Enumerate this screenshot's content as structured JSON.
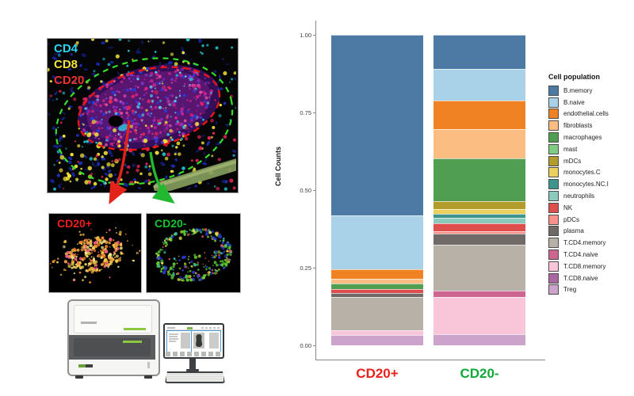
{
  "figure": {
    "microscopy": {
      "labels": [
        {
          "text": "CD4",
          "color": "#2ad5f2"
        },
        {
          "text": "CD8",
          "color": "#f2e23a"
        },
        {
          "text": "CD20",
          "color": "#f03030"
        }
      ],
      "annotation_colors": {
        "outer_dashed_ellipse": "#35e02c",
        "inner_dashed_ellipse": "#e81616",
        "red_arrow": "#e32219",
        "green_arrow": "#22b830"
      }
    },
    "subimages": [
      {
        "label": "CD20+",
        "label_color": "#f01d1d",
        "dot_theme": "orange"
      },
      {
        "label": "CD20-",
        "label_color": "#17c42d",
        "dot_theme": "green"
      }
    ]
  },
  "chart_data": {
    "type": "bar",
    "stacked": true,
    "normalized": true,
    "ylabel": "Cell Counts",
    "xlabel": "",
    "ylim": [
      0,
      1
    ],
    "yticks": [
      {
        "label": "1.00",
        "value": 1.0
      },
      {
        "label": "0.75",
        "value": 0.75
      },
      {
        "label": "0.50",
        "value": 0.5
      },
      {
        "label": "0.25",
        "value": 0.25
      },
      {
        "label": "0.00",
        "value": 0.0
      }
    ],
    "legend_title": "Cell population",
    "legend_position": "right",
    "grid": false,
    "categories": [
      {
        "label": "CD20+",
        "color": "#e8211c"
      },
      {
        "label": "CD20-",
        "color": "#10a838"
      }
    ],
    "series": [
      {
        "name": "B.memory",
        "color": "#4d79a5",
        "values": [
          0.582,
          0.11
        ]
      },
      {
        "name": "B.naive",
        "color": "#a9d1e8",
        "values": [
          0.173,
          0.101
        ]
      },
      {
        "name": "endothelial.cells",
        "color": "#f08223",
        "values": [
          0.03,
          0.092
        ]
      },
      {
        "name": "fibroblasts",
        "color": "#fbbd82",
        "values": [
          0.017,
          0.095
        ]
      },
      {
        "name": "macrophages",
        "color": "#4f9e51",
        "values": [
          0.017,
          0.138
        ]
      },
      {
        "name": "mast",
        "color": "#80cc85",
        "values": [
          0.0,
          0.0
        ]
      },
      {
        "name": "mDCs",
        "color": "#b29c2b",
        "values": [
          0.0,
          0.026
        ]
      },
      {
        "name": "monocytes.C",
        "color": "#ecd05e",
        "values": [
          0.0,
          0.015
        ]
      },
      {
        "name": "monocytes.NC.I",
        "color": "#3f958d",
        "values": [
          0.0,
          0.013
        ]
      },
      {
        "name": "neutrophils",
        "color": "#8ccabd",
        "values": [
          0.0,
          0.018
        ]
      },
      {
        "name": "NK",
        "color": "#dd4e4c",
        "values": [
          0.012,
          0.025
        ]
      },
      {
        "name": "pDCs",
        "color": "#f9908a",
        "values": [
          0.0,
          0.008
        ]
      },
      {
        "name": "plasma",
        "color": "#6f6a67",
        "values": [
          0.014,
          0.036
        ]
      },
      {
        "name": "T.CD4.memory",
        "color": "#b8b1a8",
        "values": [
          0.107,
          0.148
        ]
      },
      {
        "name": "T.CD4.naive",
        "color": "#cc6590",
        "values": [
          0.0,
          0.02
        ]
      },
      {
        "name": "T.CD8.memory",
        "color": "#f8c6d8",
        "values": [
          0.015,
          0.12
        ]
      },
      {
        "name": "T.CD8.naive",
        "color": "#aa68a0",
        "values": [
          0.0,
          0.0
        ]
      },
      {
        "name": "Treg",
        "color": "#cba3cb",
        "values": [
          0.033,
          0.035
        ]
      }
    ]
  }
}
